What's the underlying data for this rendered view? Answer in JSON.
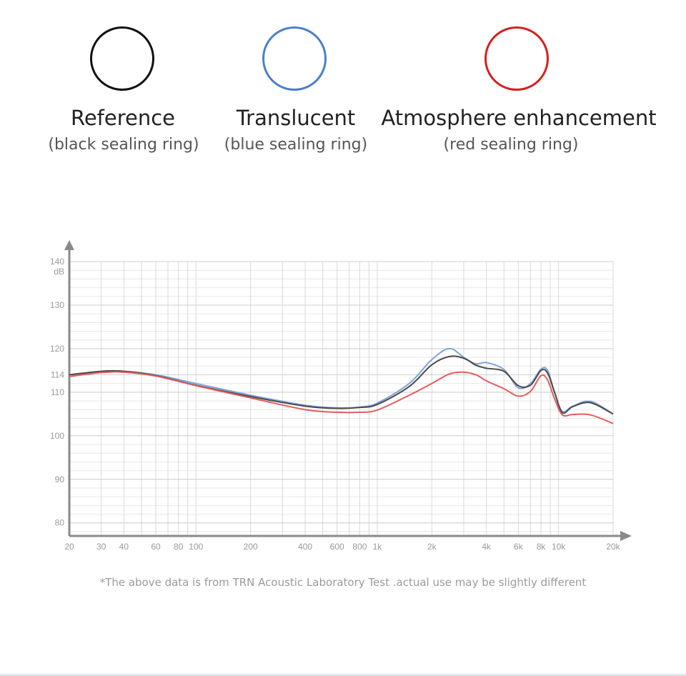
{
  "variants": [
    {
      "name": "Reference",
      "subtitle": "(black sealing ring)",
      "color": "#111111"
    },
    {
      "name": "Translucent",
      "subtitle": "(blue sealing ring)",
      "color": "#4a7fd0"
    },
    {
      "name": "Atmosphere enhancement",
      "subtitle": "(red sealing ring)",
      "color": "#d6201f"
    }
  ],
  "chart_data": {
    "type": "line",
    "xscale": "log",
    "xlim": [
      20,
      20000
    ],
    "ylim": [
      77,
      140
    ],
    "ylabel": "dB",
    "y_ticks": [
      140,
      130,
      120,
      114,
      110,
      100,
      90,
      80
    ],
    "x_ticks": [
      {
        "value": 20,
        "label": "20"
      },
      {
        "value": 30,
        "label": "30"
      },
      {
        "value": 40,
        "label": "40"
      },
      {
        "value": 60,
        "label": "60"
      },
      {
        "value": 80,
        "label": "80"
      },
      {
        "value": 100,
        "label": "100"
      },
      {
        "value": 200,
        "label": "200"
      },
      {
        "value": 400,
        "label": "400"
      },
      {
        "value": 600,
        "label": "600"
      },
      {
        "value": 800,
        "label": "800"
      },
      {
        "value": 1000,
        "label": "1k"
      },
      {
        "value": 2000,
        "label": "2k"
      },
      {
        "value": 4000,
        "label": "4k"
      },
      {
        "value": 6000,
        "label": "6k"
      },
      {
        "value": 8000,
        "label": "8k"
      },
      {
        "value": 10000,
        "label": "10k"
      },
      {
        "value": 20000,
        "label": "20k"
      }
    ],
    "x_gridlines": [
      20,
      30,
      40,
      50,
      60,
      70,
      80,
      90,
      100,
      200,
      300,
      400,
      500,
      600,
      700,
      800,
      900,
      1000,
      2000,
      3000,
      4000,
      5000,
      6000,
      7000,
      8000,
      9000,
      10000,
      20000
    ],
    "grid": true,
    "series": [
      {
        "color": "#7fa3dc",
        "x": [
          20,
          30,
          40,
          60,
          100,
          200,
          400,
          600,
          800,
          1000,
          1500,
          2000,
          2500,
          3000,
          3500,
          4000,
          5000,
          6000,
          7000,
          8000,
          8700,
          9500,
          10500,
          12000,
          15000,
          20000
        ],
        "y": [
          113.6,
          114.7,
          114.8,
          114.0,
          112.0,
          109.3,
          107.0,
          106.4,
          106.6,
          107.5,
          112.0,
          117.5,
          120.0,
          118.0,
          116.5,
          116.8,
          115.2,
          111.0,
          112.0,
          115.3,
          115.0,
          110.0,
          105.6,
          106.8,
          107.9,
          105.0
        ]
      },
      {
        "color": "#4a4a4a",
        "x": [
          20,
          30,
          40,
          60,
          100,
          200,
          400,
          600,
          800,
          1000,
          1500,
          2000,
          2500,
          3000,
          3500,
          4000,
          5000,
          6000,
          7000,
          8000,
          8700,
          9500,
          10500,
          12000,
          15000,
          20000
        ],
        "y": [
          114.0,
          114.8,
          114.8,
          113.8,
          111.6,
          109.0,
          106.8,
          106.3,
          106.5,
          107.2,
          111.3,
          116.3,
          118.2,
          117.8,
          116.2,
          115.5,
          114.8,
          111.5,
          111.6,
          115.0,
          114.4,
          110.0,
          105.3,
          106.7,
          107.6,
          105.0
        ]
      },
      {
        "color": "#e45c5c",
        "x": [
          20,
          30,
          40,
          60,
          100,
          200,
          400,
          600,
          800,
          1000,
          1500,
          2000,
          2500,
          3000,
          3500,
          4000,
          5000,
          6000,
          7000,
          8000,
          8700,
          9500,
          10500,
          12000,
          15000,
          20000
        ],
        "y": [
          113.6,
          114.5,
          114.6,
          113.7,
          111.5,
          108.7,
          106.0,
          105.4,
          105.4,
          105.9,
          109.3,
          112.0,
          114.2,
          114.6,
          114.0,
          112.6,
          110.8,
          109.1,
          110.2,
          113.8,
          112.8,
          108.5,
          104.8,
          104.9,
          104.8,
          102.8
        ]
      }
    ]
  },
  "footnote": "*The above data is from TRN Acoustic Laboratory Test .actual use may be slightly different"
}
